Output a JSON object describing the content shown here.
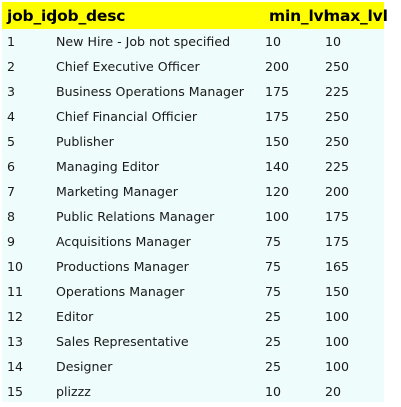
{
  "columns": {
    "job_id": "job_id",
    "job_desc": "job_desc",
    "min_lvl": "min_lvl",
    "max_lvl": "max_lvl"
  },
  "rows": [
    {
      "job_id": "1",
      "job_desc": "New Hire - Job not specified",
      "min_lvl": "10",
      "max_lvl": "10"
    },
    {
      "job_id": "2",
      "job_desc": "Chief Executive Officer",
      "min_lvl": "200",
      "max_lvl": "250"
    },
    {
      "job_id": "3",
      "job_desc": "Business Operations Manager",
      "min_lvl": "175",
      "max_lvl": "225"
    },
    {
      "job_id": "4",
      "job_desc": "Chief Financial Officier",
      "min_lvl": "175",
      "max_lvl": "250"
    },
    {
      "job_id": "5",
      "job_desc": "Publisher",
      "min_lvl": "150",
      "max_lvl": "250"
    },
    {
      "job_id": "6",
      "job_desc": "Managing Editor",
      "min_lvl": "140",
      "max_lvl": "225"
    },
    {
      "job_id": "7",
      "job_desc": "Marketing Manager",
      "min_lvl": "120",
      "max_lvl": "200"
    },
    {
      "job_id": "8",
      "job_desc": "Public Relations Manager",
      "min_lvl": "100",
      "max_lvl": "175"
    },
    {
      "job_id": "9",
      "job_desc": "Acquisitions Manager",
      "min_lvl": "75",
      "max_lvl": "175"
    },
    {
      "job_id": "10",
      "job_desc": "Productions Manager",
      "min_lvl": "75",
      "max_lvl": "165"
    },
    {
      "job_id": "11",
      "job_desc": "Operations Manager",
      "min_lvl": "75",
      "max_lvl": "150"
    },
    {
      "job_id": "12",
      "job_desc": "Editor",
      "min_lvl": "25",
      "max_lvl": "100"
    },
    {
      "job_id": "13",
      "job_desc": "Sales Representative",
      "min_lvl": "25",
      "max_lvl": "100"
    },
    {
      "job_id": "14",
      "job_desc": "Designer",
      "min_lvl": "25",
      "max_lvl": "100"
    },
    {
      "job_id": "15",
      "job_desc": "plizzz",
      "min_lvl": "10",
      "max_lvl": "20"
    }
  ],
  "colors": {
    "header_background": "#ffff00",
    "grid_background": "#eefcfc",
    "text": "#1a1a1a"
  }
}
